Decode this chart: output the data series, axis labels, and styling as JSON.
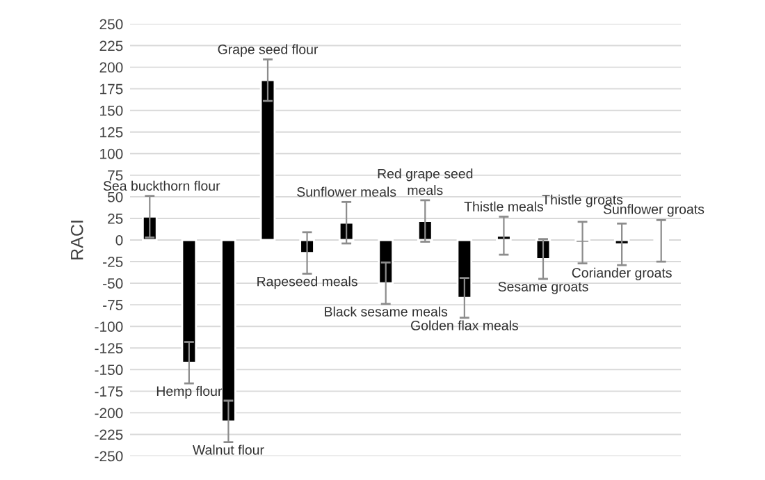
{
  "chart_data": {
    "type": "bar",
    "ylabel": "RACI",
    "categories": [
      null,
      null,
      null,
      null,
      null,
      null,
      null,
      null,
      null,
      null,
      null,
      null,
      null,
      null
    ],
    "values": [
      27,
      -142,
      -210,
      185,
      -15,
      20,
      -50,
      22,
      -67,
      5,
      -22,
      -3,
      -5,
      -1
    ],
    "value_labels": [
      "Sea buckthorn flour",
      "Hemp flour",
      "Walnut flour",
      "Grape seed flour",
      "Rapeseed meals",
      "Sunflower meals",
      "Black sesame meals",
      "Red grape seed\nmeals",
      "Golden flax meals",
      "Thistle meals",
      "Sesame groats",
      "Thistle groats",
      "Coriander groats",
      "Sunflower groats"
    ],
    "errors": [
      24,
      24,
      24,
      24,
      24,
      24,
      24,
      24,
      23,
      22,
      23,
      24,
      24,
      24
    ],
    "color": "#000000",
    "ylim": [
      -250,
      250
    ],
    "yticks": [
      -250,
      -225,
      -200,
      -175,
      -150,
      -125,
      -100,
      -75,
      -50,
      -25,
      0,
      25,
      50,
      75,
      100,
      125,
      150,
      175,
      200,
      225,
      250
    ],
    "grid": "y"
  }
}
